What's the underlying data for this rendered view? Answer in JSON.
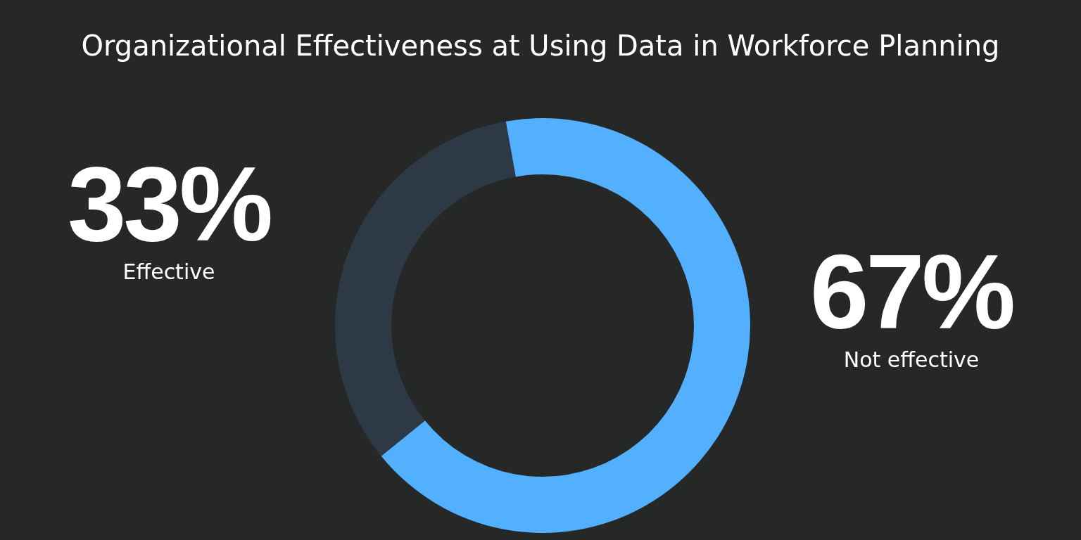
{
  "chart_data": {
    "type": "donut",
    "title": "Organizational Effectiveness at Using Data in Workforce Planning",
    "categories": [
      "Effective",
      "Not effective"
    ],
    "values": [
      33,
      67
    ],
    "value_labels": [
      "33%",
      "67%"
    ],
    "colors": [
      "#2d3a46",
      "#52b0ff"
    ],
    "legend": false
  }
}
